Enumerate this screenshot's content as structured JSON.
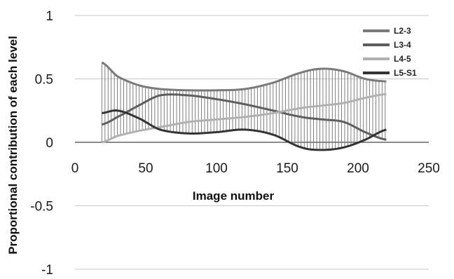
{
  "chart_data": {
    "type": "line",
    "title": "",
    "xlabel": "Image number",
    "ylabel": "Proportional contribution of each level",
    "xlim": [
      0,
      250
    ],
    "ylim": [
      -1,
      1
    ],
    "x_ticks": [
      0,
      50,
      100,
      150,
      200,
      250
    ],
    "y_ticks": [
      -1,
      -0.5,
      0,
      0.5,
      1
    ],
    "y_tick_labels": [
      "-1",
      "-0.5",
      "0",
      "0.5",
      "1"
    ],
    "grid": "horizontal",
    "legend_position": "top-right",
    "series": [
      {
        "name": "L2-3",
        "color": "#7a7a7a",
        "x": [
          19,
          30,
          45,
          60,
          80,
          100,
          120,
          140,
          160,
          175,
          190,
          205,
          220
        ],
        "y": [
          0.63,
          0.52,
          0.45,
          0.42,
          0.41,
          0.41,
          0.42,
          0.47,
          0.55,
          0.58,
          0.56,
          0.5,
          0.48
        ]
      },
      {
        "name": "L3-4",
        "color": "#5e5e5e",
        "x": [
          19,
          30,
          45,
          60,
          80,
          100,
          120,
          140,
          160,
          175,
          190,
          205,
          220
        ],
        "y": [
          0.14,
          0.2,
          0.29,
          0.37,
          0.37,
          0.34,
          0.3,
          0.25,
          0.2,
          0.18,
          0.16,
          0.08,
          0.02
        ]
      },
      {
        "name": "L4-5",
        "color": "#b0b0b0",
        "x": [
          19,
          30,
          45,
          60,
          80,
          100,
          120,
          140,
          160,
          175,
          190,
          205,
          220
        ],
        "y": [
          0.0,
          0.05,
          0.09,
          0.12,
          0.16,
          0.18,
          0.2,
          0.23,
          0.27,
          0.29,
          0.31,
          0.35,
          0.38
        ]
      },
      {
        "name": "L5-S1",
        "color": "#333333",
        "x": [
          19,
          30,
          45,
          60,
          80,
          100,
          120,
          140,
          160,
          175,
          190,
          205,
          220
        ],
        "y": [
          0.23,
          0.25,
          0.19,
          0.1,
          0.07,
          0.08,
          0.1,
          0.06,
          -0.04,
          -0.06,
          -0.04,
          0.02,
          0.1
        ]
      }
    ]
  }
}
